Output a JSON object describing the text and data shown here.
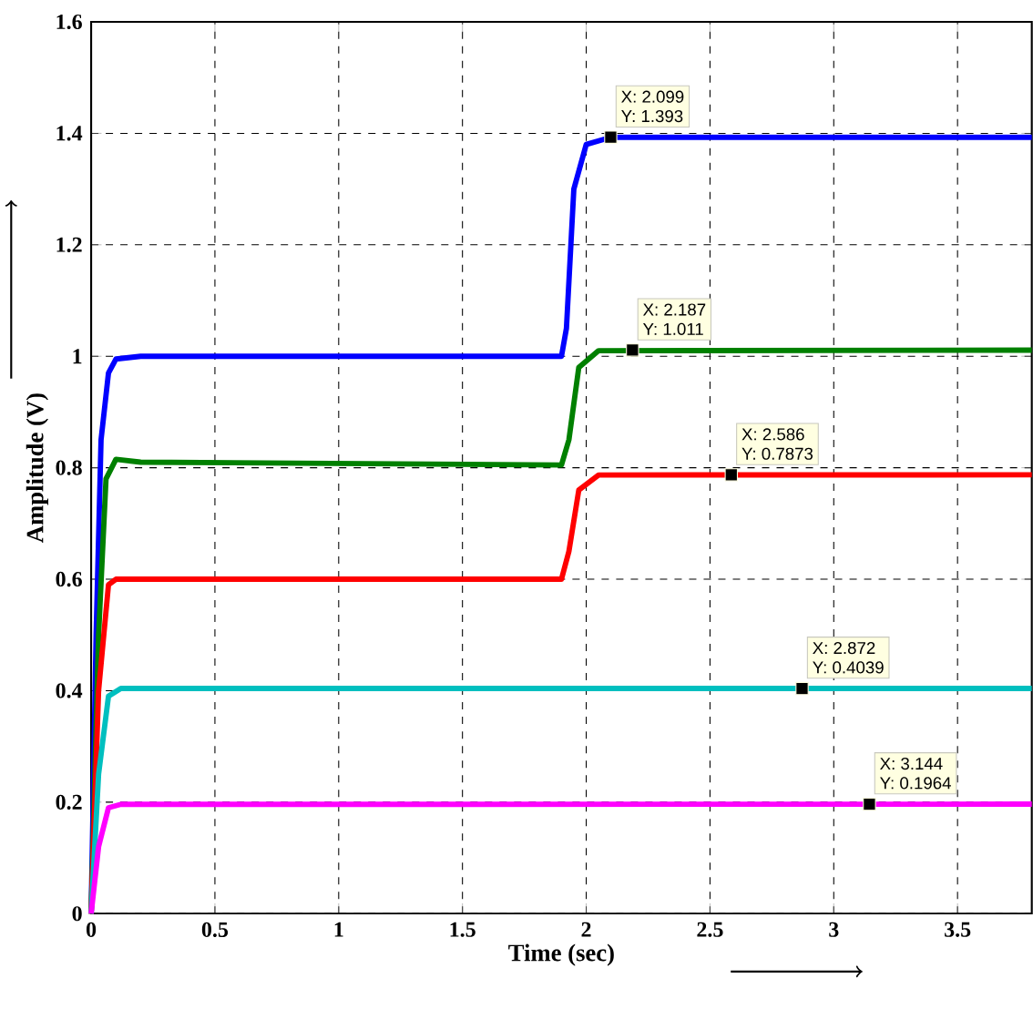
{
  "chart_data": {
    "type": "line",
    "xlabel": "Time (sec)",
    "ylabel": "Amplitude (V)",
    "xlim": [
      0,
      3.8
    ],
    "ylim": [
      0,
      1.6
    ],
    "xticks": [
      0,
      0.5,
      1,
      1.5,
      2,
      2.5,
      3,
      3.5
    ],
    "yticks": [
      0,
      0.2,
      0.4,
      0.6,
      0.8,
      1,
      1.2,
      1.4,
      1.6
    ],
    "grid": true,
    "line_style": "solid",
    "series": [
      {
        "color": "#0000ff",
        "x": [
          0,
          0.02,
          0.04,
          0.07,
          0.1,
          0.2,
          1.9,
          1.92,
          1.95,
          2.0,
          2.1,
          3.8
        ],
        "values": [
          0,
          0.5,
          0.85,
          0.97,
          0.995,
          1.0,
          1.0,
          1.05,
          1.3,
          1.38,
          1.393,
          1.393
        ]
      },
      {
        "color": "#008000",
        "x": [
          0,
          0.03,
          0.06,
          0.1,
          0.2,
          1.9,
          1.93,
          1.97,
          2.05,
          3.8
        ],
        "values": [
          0,
          0.5,
          0.78,
          0.815,
          0.81,
          0.805,
          0.85,
          0.98,
          1.01,
          1.011
        ]
      },
      {
        "color": "#ff0000",
        "x": [
          0,
          0.03,
          0.07,
          0.1,
          1.9,
          1.93,
          1.97,
          2.05,
          3.8
        ],
        "values": [
          0,
          0.4,
          0.59,
          0.6,
          0.6,
          0.65,
          0.76,
          0.787,
          0.7873
        ]
      },
      {
        "color": "#00bfbf",
        "x": [
          0,
          0.03,
          0.07,
          0.12,
          3.8
        ],
        "values": [
          0,
          0.25,
          0.39,
          0.404,
          0.4039
        ]
      },
      {
        "color": "#ff00ff",
        "x": [
          0,
          0.03,
          0.07,
          0.12,
          3.8
        ],
        "values": [
          0,
          0.12,
          0.19,
          0.196,
          0.1964
        ]
      }
    ],
    "annotations": [
      {
        "text": "X: 2.099",
        "x": 2.099,
        "y": 1.393
      },
      {
        "text": "Y: 1.393",
        "x": 2.099,
        "y": 1.393
      },
      {
        "text": "X: 2.187",
        "x": 2.187,
        "y": 1.011
      },
      {
        "text": "Y: 1.011",
        "x": 2.187,
        "y": 1.011
      },
      {
        "text": "X: 2.586",
        "x": 2.586,
        "y": 0.7873
      },
      {
        "text": "Y: 0.7873",
        "x": 2.586,
        "y": 0.7873
      },
      {
        "text": "X: 2.872",
        "x": 2.872,
        "y": 0.4039
      },
      {
        "text": "Y: 0.4039",
        "x": 2.872,
        "y": 0.4039
      },
      {
        "text": "X: 3.144",
        "x": 3.144,
        "y": 0.1964
      },
      {
        "text": "Y: 0.1964",
        "x": 3.144,
        "y": 0.1964
      }
    ]
  }
}
